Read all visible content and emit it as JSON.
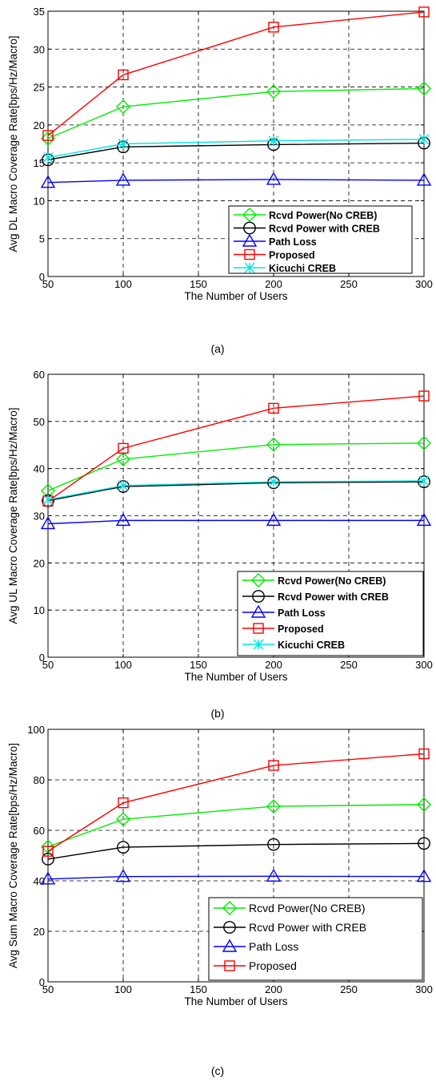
{
  "chart_data": [
    {
      "type": "line",
      "caption": "(a)",
      "xlabel": "The Number of Users",
      "ylabel": "Avg DL Macro Coverage Rate[bps/Hz/Macro]",
      "xlim": [
        50,
        300
      ],
      "ylim": [
        0,
        35
      ],
      "xticks": [
        50,
        100,
        150,
        200,
        250,
        300
      ],
      "yticks": [
        0,
        5,
        10,
        15,
        20,
        25,
        30,
        35
      ],
      "grid": true,
      "legend_position": "bottom-right",
      "legend_bold": true,
      "x": [
        50,
        100,
        200,
        300
      ],
      "series": [
        {
          "name": "Rcvd Power(No CREB)",
          "marker": "diamond",
          "color": "#00ee00",
          "values": [
            18.2,
            22.4,
            24.4,
            24.8
          ]
        },
        {
          "name": "Rcvd Power with CREB",
          "marker": "circle",
          "color": "#000000",
          "values": [
            15.4,
            17.1,
            17.4,
            17.6
          ]
        },
        {
          "name": "Path Loss",
          "marker": "triangle",
          "color": "#0000ff",
          "values": [
            12.4,
            12.7,
            12.8,
            12.7
          ]
        },
        {
          "name": "Proposed",
          "marker": "square",
          "color": "#ff0000",
          "values": [
            18.6,
            26.6,
            32.9,
            34.9
          ]
        },
        {
          "name": "Kicuchi CREB",
          "marker": "x",
          "color": "#00e5e5",
          "values": [
            15.7,
            17.5,
            17.9,
            18.1
          ]
        }
      ]
    },
    {
      "type": "line",
      "caption": "(b)",
      "xlabel": "The Number of Users",
      "ylabel": "Avg UL Macro Coverage Rate[bps/Hz/Macro]",
      "xlim": [
        50,
        300
      ],
      "ylim": [
        0,
        60
      ],
      "xticks": [
        50,
        100,
        150,
        200,
        250,
        300
      ],
      "yticks": [
        0,
        10,
        20,
        30,
        40,
        50,
        60
      ],
      "grid": true,
      "legend_position": "bottom-right",
      "legend_bold": true,
      "x": [
        50,
        100,
        200,
        300
      ],
      "series": [
        {
          "name": "Rcvd Power(No CREB)",
          "marker": "diamond",
          "color": "#00ee00",
          "values": [
            35.3,
            42.0,
            45.1,
            45.4
          ]
        },
        {
          "name": "Rcvd Power with CREB",
          "marker": "circle",
          "color": "#000000",
          "values": [
            33.2,
            36.2,
            37.0,
            37.2
          ]
        },
        {
          "name": "Path Loss",
          "marker": "triangle",
          "color": "#0000ff",
          "values": [
            28.3,
            29.0,
            29.0,
            29.0
          ]
        },
        {
          "name": "Proposed",
          "marker": "square",
          "color": "#ff0000",
          "values": [
            33.1,
            44.3,
            52.8,
            55.4
          ]
        },
        {
          "name": "Kicuchi CREB",
          "marker": "x",
          "color": "#00e5e5",
          "values": [
            33.4,
            36.4,
            37.2,
            37.4
          ]
        }
      ]
    },
    {
      "type": "line",
      "caption": "(c)",
      "xlabel": "The Number of Users",
      "ylabel": "Avg Sum Macro Coverage Rate[bps/Hz/Macro]",
      "xlim": [
        50,
        300
      ],
      "ylim": [
        0,
        100
      ],
      "xticks": [
        50,
        100,
        150,
        200,
        250,
        300
      ],
      "yticks": [
        0,
        20,
        40,
        60,
        80,
        100
      ],
      "grid": true,
      "legend_position": "bottom-right",
      "legend_bold": false,
      "x": [
        50,
        100,
        200,
        300
      ],
      "series": [
        {
          "name": "Rcvd Power(No CREB)",
          "marker": "diamond",
          "color": "#00ee00",
          "values": [
            53.5,
            64.4,
            69.5,
            70.2
          ]
        },
        {
          "name": "Rcvd Power with CREB",
          "marker": "circle",
          "color": "#000000",
          "values": [
            48.6,
            53.3,
            54.4,
            54.8
          ]
        },
        {
          "name": "Path Loss",
          "marker": "triangle",
          "color": "#0000ff",
          "values": [
            40.7,
            41.7,
            41.8,
            41.7
          ]
        },
        {
          "name": "Proposed",
          "marker": "square",
          "color": "#ff0000",
          "values": [
            51.7,
            70.9,
            85.7,
            90.3
          ]
        }
      ]
    }
  ]
}
